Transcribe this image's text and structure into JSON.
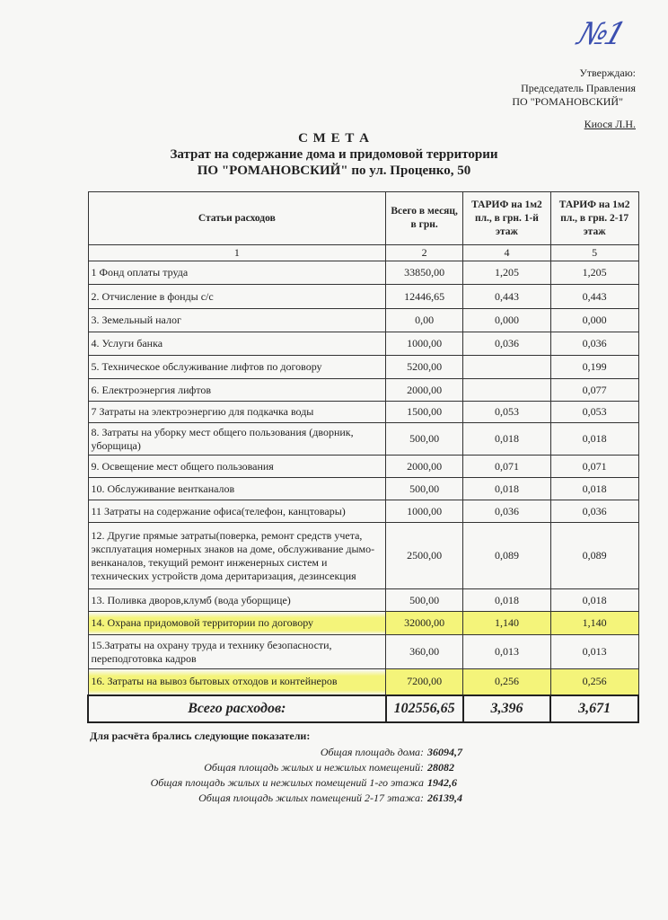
{
  "handwritten_number": "№1",
  "approval": {
    "line1": "Утверждаю:",
    "line2": "Председатель Правления",
    "line3": "ПО \"РОМАНОВСКИЙ\"",
    "signer": "Киося Л.Н."
  },
  "title": {
    "main": "С М Е Т А",
    "sub1": "Затрат на содержание дома и придомовой территории",
    "sub2": "ПО \"РОМАНОВСКИЙ\" по ул. Проценко, 50"
  },
  "table": {
    "headers": [
      "Статьи  расходов",
      "Всего в месяц, в грн.",
      "ТАРИФ  на 1м2 пл., в грн. 1-й этаж",
      "ТАРИФ  на 1м2 пл., в грн. 2-17 этаж"
    ],
    "column_numbers": [
      "1",
      "2",
      "4",
      "5"
    ],
    "rows": [
      {
        "name": "1  Фонд оплаты труда",
        "total": "33850,00",
        "t1": "1,205",
        "t2": "1,205"
      },
      {
        "name": "2. Отчисление в фонды с/с",
        "total": "12446,65",
        "t1": "0,443",
        "t2": "0,443"
      },
      {
        "name": "3. Земельный налог",
        "total": "0,00",
        "t1": "0,000",
        "t2": "0,000"
      },
      {
        "name": "4. Услуги банка",
        "total": "1000,00",
        "t1": "0,036",
        "t2": "0,036"
      },
      {
        "name": "5. Техническое обслуживание лифтов по договору",
        "total": "5200,00",
        "t1": "",
        "t2": "0,199"
      },
      {
        "name": "6. Електроэнергия  лифтов",
        "total": "2000,00",
        "t1": "",
        "t2": "0,077"
      },
      {
        "name": "7  Затраты на электроэнергию для подкачка воды",
        "total": "1500,00",
        "t1": "0,053",
        "t2": "0,053"
      },
      {
        "name": "8. Затраты на уборку мест общего пользования (дворник, уборщица)",
        "total": "500,00",
        "t1": "0,018",
        "t2": "0,018"
      },
      {
        "name": "9. Освещение мест общего пользования",
        "total": "2000,00",
        "t1": "0,071",
        "t2": "0,071"
      },
      {
        "name": "10. Обслуживание вентканалов",
        "total": "500,00",
        "t1": "0,018",
        "t2": "0,018"
      },
      {
        "name": "11  Затраты на содержание офиса(телефон, канцтовары)",
        "total": "1000,00",
        "t1": "0,036",
        "t2": "0,036"
      },
      {
        "name": "12. Другие прямые затраты(поверка, ремонт средств учета, эксплуатация номерных знаков на доме, обслуживание дымо-венканалов, текущий ремонт инженерных систем и технических устройств дома  деритаризация, дезинсекция",
        "total": "2500,00",
        "t1": "0,089",
        "t2": "0,089"
      },
      {
        "name": "13. Поливка  дворов,клумб (вода уборщице)",
        "total": "500,00",
        "t1": "0,018",
        "t2": "0,018"
      },
      {
        "name": "14. Охрана придомовой территории по договору",
        "total": "32000,00",
        "t1": "1,140",
        "t2": "1,140",
        "highlighted": true
      },
      {
        "name": "15.Затраты на охрану труда и технику безопасности, переподготовка кадров",
        "total": "360,00",
        "t1": "0,013",
        "t2": "0,013"
      },
      {
        "name": "16. Затраты на вывоз бытовых отходов и контейнеров",
        "total": "7200,00",
        "t1": "0,256",
        "t2": "0,256",
        "highlighted": true
      }
    ],
    "total": {
      "label": "Всего расходов:",
      "total": "102556,65",
      "t1": "3,396",
      "t2": "3,671"
    }
  },
  "params": {
    "heading": "Для расчёта брались следующие показатели:",
    "items": [
      {
        "label": "Общая площадь дома:",
        "value": "36094,7"
      },
      {
        "label": "Общая площадь жилых и нежилых помещений:",
        "value": "28082"
      },
      {
        "label": "Общая площадь жилых и нежилых помещений 1-го этажа",
        "value": "1942,6"
      },
      {
        "label": "Общая площадь жилых помещений 2-17 этажа:",
        "value": "26139,4"
      }
    ]
  },
  "colors": {
    "highlight": "#f4f47a",
    "ink": "#3b4fb0"
  }
}
